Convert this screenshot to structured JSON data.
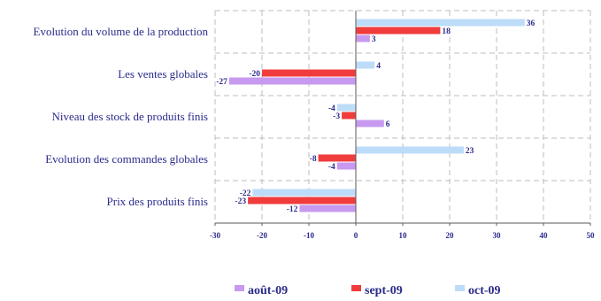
{
  "chart_data": {
    "type": "bar",
    "orientation": "horizontal",
    "categories": [
      "Evolution du volume de la production",
      "Les ventes globales",
      "Niveau des stock de produits finis",
      "Evolution des commandes globales",
      "Prix des produits finis"
    ],
    "series": [
      {
        "name": "oct-09",
        "color": "#bcdcf8",
        "values": [
          36,
          4,
          -4,
          23,
          -22
        ]
      },
      {
        "name": "sept-09",
        "color": "#f03c3c",
        "values": [
          18,
          -20,
          -3,
          -8,
          -23
        ]
      },
      {
        "name": "août-09",
        "color": "#c79aef",
        "values": [
          3,
          -27,
          6,
          -4,
          -12
        ]
      }
    ],
    "xlim": [
      -30,
      50
    ],
    "xticks": [
      "-30",
      "-20",
      "-10",
      "0",
      "10",
      "20",
      "30",
      "40",
      "50"
    ],
    "grid": true,
    "legend": {
      "position": "bottom",
      "items": [
        {
          "name": "août-09",
          "color": "#c79aef"
        },
        {
          "name": "sept-09",
          "color": "#f03c3c"
        },
        {
          "name": "oct-09",
          "color": "#bcdcf8"
        }
      ]
    },
    "text_color": "#2b2b8c"
  }
}
